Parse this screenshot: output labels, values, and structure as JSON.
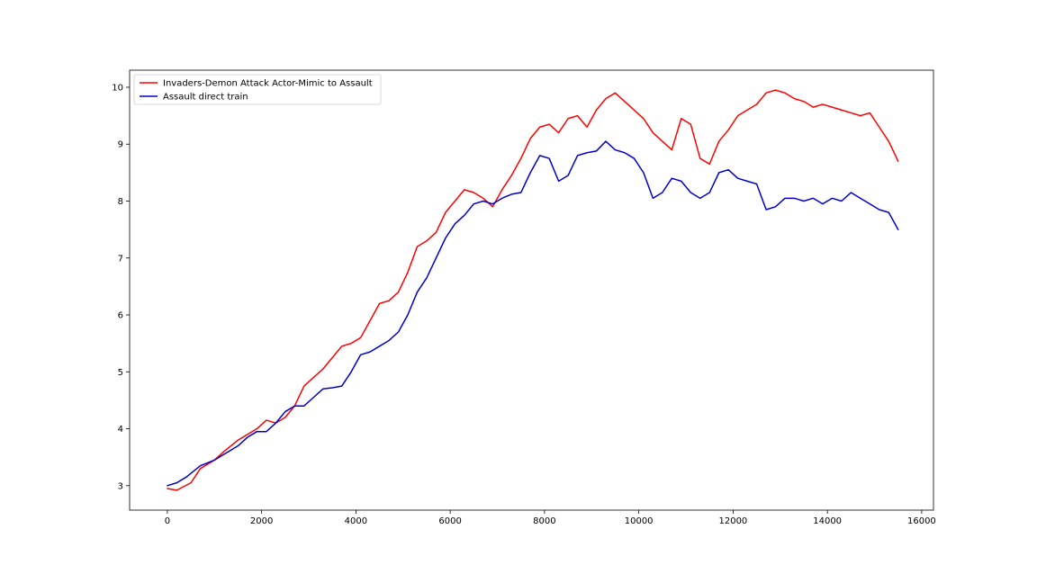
{
  "chart_data": {
    "type": "line",
    "title": "",
    "xlabel": "",
    "ylabel": "",
    "xlim": [
      -800,
      16250
    ],
    "ylim": [
      2.57,
      10.3
    ],
    "xticks": [
      0,
      2000,
      4000,
      6000,
      8000,
      10000,
      12000,
      14000,
      16000
    ],
    "yticks": [
      3,
      4,
      5,
      6,
      7,
      8,
      9,
      10
    ],
    "grid": false,
    "legend_placement": "top-left",
    "series": [
      {
        "name": "Invaders-Demon Attack Actor-Mimic to Assault",
        "color": "#ff0000",
        "x": [
          0,
          200,
          500,
          700,
          1000,
          1200,
          1500,
          1700,
          1900,
          2100,
          2300,
          2500,
          2700,
          2900,
          3100,
          3300,
          3500,
          3700,
          3900,
          4100,
          4300,
          4500,
          4700,
          4900,
          5100,
          5300,
          5500,
          5700,
          5900,
          6100,
          6300,
          6500,
          6700,
          6900,
          7100,
          7300,
          7500,
          7700,
          7900,
          8100,
          8300,
          8500,
          8700,
          8900,
          9100,
          9300,
          9500,
          9700,
          9900,
          10100,
          10300,
          10500,
          10700,
          10900,
          11100,
          11300,
          11500,
          11700,
          11900,
          12100,
          12300,
          12500,
          12700,
          12900,
          13100,
          13300,
          13500,
          13700,
          13900,
          14100,
          14300,
          14500,
          14700,
          14900,
          15100,
          15300,
          15500
        ],
        "values": [
          2.95,
          2.92,
          3.05,
          3.3,
          3.45,
          3.6,
          3.8,
          3.9,
          4.0,
          4.15,
          4.1,
          4.2,
          4.4,
          4.75,
          4.9,
          5.05,
          5.25,
          5.45,
          5.5,
          5.6,
          5.9,
          6.2,
          6.25,
          6.4,
          6.75,
          7.2,
          7.3,
          7.45,
          7.8,
          8.0,
          8.2,
          8.15,
          8.05,
          7.9,
          8.2,
          8.45,
          8.75,
          9.1,
          9.3,
          9.35,
          9.2,
          9.45,
          9.5,
          9.3,
          9.6,
          9.8,
          9.9,
          9.75,
          9.6,
          9.45,
          9.2,
          9.05,
          8.9,
          9.45,
          9.35,
          8.75,
          8.65,
          9.05,
          9.25,
          9.5,
          9.6,
          9.7,
          9.9,
          9.95,
          9.9,
          9.8,
          9.75,
          9.65,
          9.7,
          9.65,
          9.6,
          9.55,
          9.5,
          9.55,
          9.3,
          9.05,
          8.7
        ]
      },
      {
        "name": "Assault direct train",
        "color": "#0000cc",
        "x": [
          0,
          200,
          400,
          700,
          1000,
          1200,
          1500,
          1700,
          1900,
          2100,
          2300,
          2500,
          2700,
          2900,
          3100,
          3300,
          3500,
          3700,
          3900,
          4100,
          4300,
          4500,
          4700,
          4900,
          5100,
          5300,
          5500,
          5700,
          5900,
          6100,
          6300,
          6500,
          6700,
          6900,
          7100,
          7300,
          7500,
          7700,
          7900,
          8100,
          8300,
          8500,
          8700,
          8900,
          9100,
          9300,
          9500,
          9700,
          9900,
          10100,
          10300,
          10500,
          10700,
          10900,
          11100,
          11300,
          11500,
          11700,
          11900,
          12100,
          12300,
          12500,
          12700,
          12900,
          13100,
          13300,
          13500,
          13700,
          13900,
          14100,
          14300,
          14500,
          14700,
          14900,
          15100,
          15300,
          15500
        ],
        "values": [
          3.0,
          3.05,
          3.15,
          3.35,
          3.45,
          3.55,
          3.7,
          3.85,
          3.95,
          3.95,
          4.1,
          4.3,
          4.4,
          4.4,
          4.55,
          4.7,
          4.72,
          4.75,
          5.0,
          5.3,
          5.35,
          5.45,
          5.55,
          5.7,
          6.0,
          6.4,
          6.65,
          7.0,
          7.35,
          7.6,
          7.75,
          7.95,
          8.0,
          7.95,
          8.05,
          8.12,
          8.15,
          8.5,
          8.8,
          8.75,
          8.35,
          8.45,
          8.8,
          8.85,
          8.88,
          9.05,
          8.9,
          8.85,
          8.75,
          8.5,
          8.05,
          8.15,
          8.4,
          8.35,
          8.15,
          8.05,
          8.15,
          8.5,
          8.55,
          8.4,
          8.35,
          8.3,
          7.85,
          7.9,
          8.05,
          8.05,
          8.0,
          8.05,
          7.95,
          8.05,
          8.0,
          8.15,
          8.05,
          7.95,
          7.85,
          7.8,
          7.5
        ]
      }
    ]
  }
}
